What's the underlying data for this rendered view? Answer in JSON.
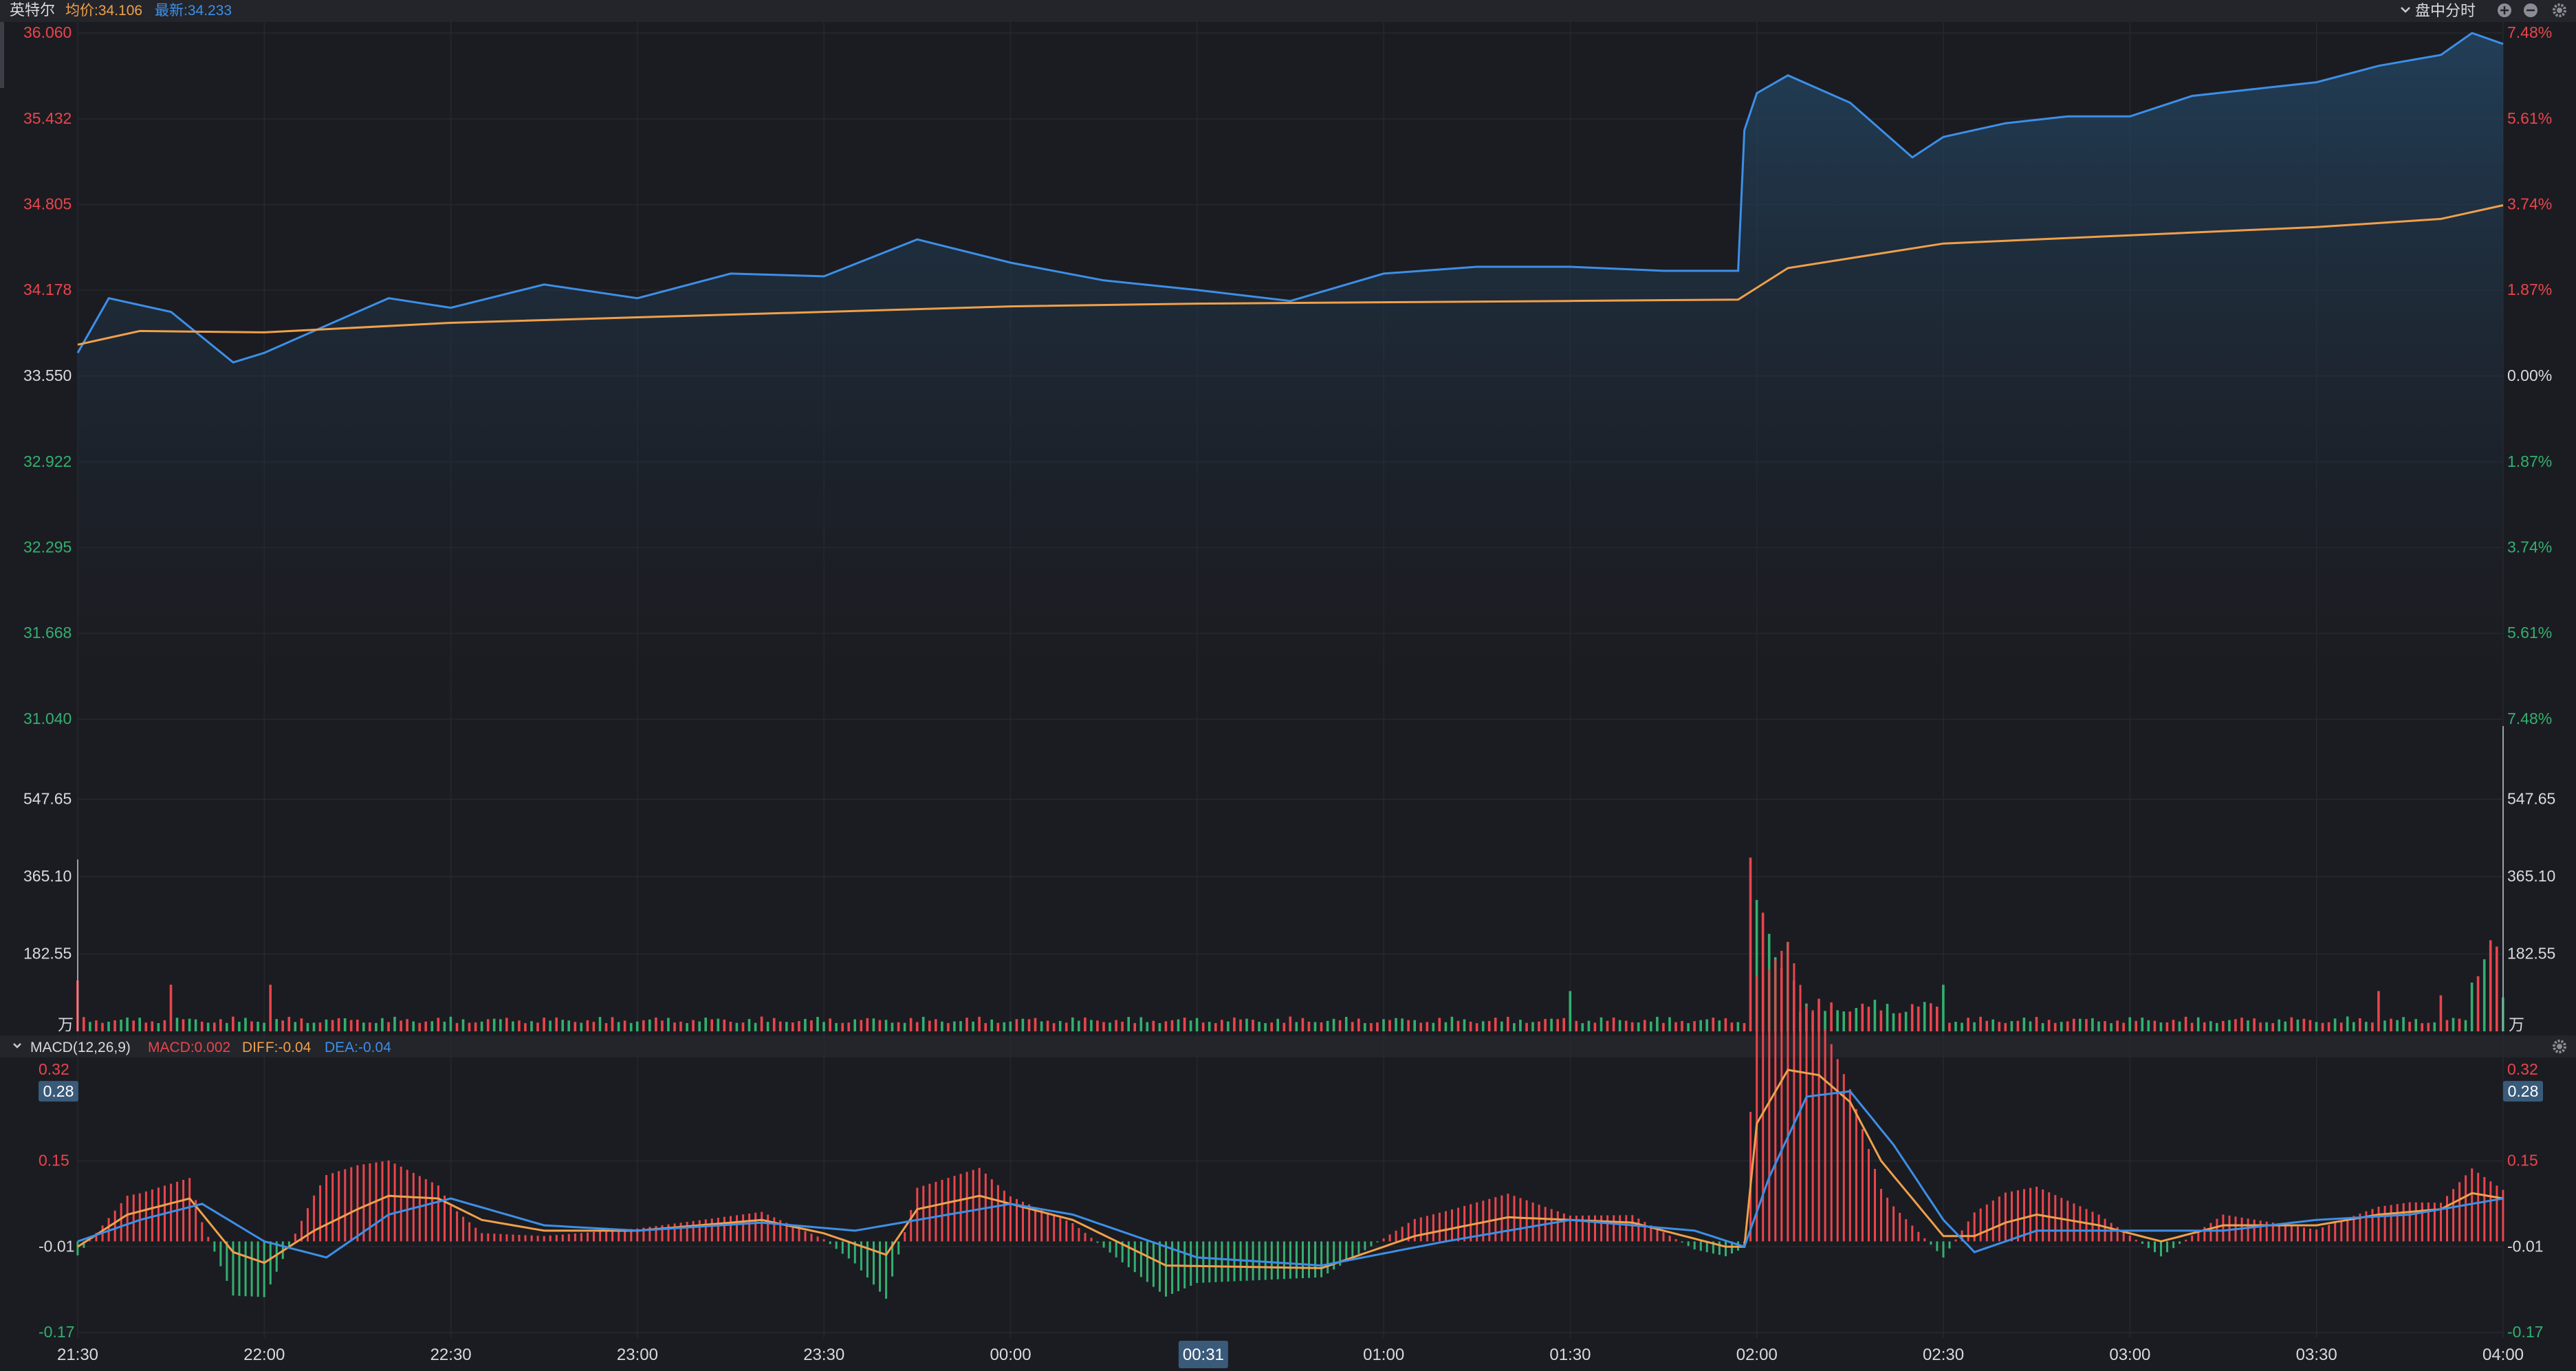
{
  "header": {
    "stock_name": "英特尔",
    "avg_label": "均价:34.106",
    "latest_label": "最新:34.233",
    "mode_label": "盘中分时",
    "icons": [
      "chevron-down-icon",
      "zoom-in-icon",
      "zoom-out-icon",
      "gear-icon"
    ]
  },
  "macd_header": {
    "title": "MACD(12,26,9)",
    "macd": "MACD:0.002",
    "diff": "DIFF:-0.04",
    "dea": "DEA:-0.04"
  },
  "colors": {
    "background": "#1b1c21",
    "up": "#e9454c",
    "down": "#32b070",
    "price_line": "#3d8fe8",
    "avg_line": "#f0a04b",
    "neutral_text": "#d8dae0",
    "grid": "#26282e"
  },
  "chart_data": [
    {
      "type": "line",
      "name": "price",
      "x_start": "21:30",
      "x_end": "04:00",
      "ylim": [
        31.04,
        36.06
      ],
      "y_tick_labels": [
        "36.060",
        "35.432",
        "34.805",
        "34.178",
        "33.550",
        "32.922",
        "32.295",
        "31.668",
        "31.040"
      ],
      "pct_tick_labels": [
        "7.48%",
        "5.61%",
        "3.74%",
        "1.87%",
        "0.00%",
        "1.87%",
        "3.74%",
        "5.61%",
        "7.48%"
      ],
      "series": [
        {
          "name": "最新",
          "x": [
            "21:30",
            "21:35",
            "21:45",
            "21:55",
            "22:00",
            "22:10",
            "22:20",
            "22:30",
            "22:45",
            "23:00",
            "23:15",
            "23:30",
            "23:45",
            "00:00",
            "00:15",
            "00:30",
            "00:45",
            "01:00",
            "01:15",
            "01:30",
            "01:45",
            "01:57",
            "01:58",
            "02:00",
            "02:05",
            "02:15",
            "02:25",
            "02:30",
            "02:40",
            "02:50",
            "03:00",
            "03:10",
            "03:20",
            "03:30",
            "03:40",
            "03:50",
            "03:55",
            "04:00"
          ],
          "values": [
            33.72,
            34.12,
            34.02,
            33.65,
            33.72,
            33.92,
            34.12,
            34.05,
            34.22,
            34.12,
            34.3,
            34.28,
            34.55,
            34.38,
            34.25,
            34.18,
            34.1,
            34.3,
            34.35,
            34.35,
            34.32,
            34.32,
            35.35,
            35.62,
            35.75,
            35.55,
            35.15,
            35.3,
            35.4,
            35.45,
            35.45,
            35.6,
            35.65,
            35.7,
            35.82,
            35.9,
            36.06,
            35.98
          ]
        },
        {
          "name": "均价",
          "x": [
            "21:30",
            "21:40",
            "22:00",
            "22:30",
            "23:00",
            "23:30",
            "00:00",
            "00:30",
            "01:00",
            "01:30",
            "01:57",
            "02:05",
            "02:30",
            "03:00",
            "03:30",
            "03:50",
            "04:00"
          ],
          "values": [
            33.78,
            33.88,
            33.87,
            33.94,
            33.98,
            34.02,
            34.06,
            34.08,
            34.09,
            34.1,
            34.11,
            34.34,
            34.52,
            34.58,
            34.64,
            34.7,
            34.8
          ]
        }
      ]
    },
    {
      "type": "bar",
      "name": "volume",
      "unit_label": "万",
      "ylim": [
        0,
        730
      ],
      "y_tick_labels": [
        "547.65",
        "365.10",
        "182.55"
      ],
      "x_start": "21:30",
      "x_end": "04:00",
      "interval_minutes": 1,
      "spike_minutes": [
        0,
        15,
        31,
        240,
        300,
        370,
        380,
        390
      ],
      "spike_values": [
        120,
        110,
        110,
        95,
        110,
        95,
        85,
        80
      ],
      "big_spikes": [
        {
          "minute": 269,
          "value": 410
        },
        {
          "minute": 270,
          "value": 310
        },
        {
          "minute": 271,
          "value": 280
        },
        {
          "minute": 272,
          "value": 230
        },
        {
          "minute": 273,
          "value": 175
        },
        {
          "minute": 274,
          "value": 150
        },
        {
          "minute": 275,
          "value": 210
        },
        {
          "minute": 276,
          "value": 120
        },
        {
          "minute": 385,
          "value": 115
        },
        {
          "minute": 386,
          "value": 130
        },
        {
          "minute": 387,
          "value": 170
        },
        {
          "minute": 388,
          "value": 215
        },
        {
          "minute": 389,
          "value": 200
        }
      ],
      "base_value": 35
    },
    {
      "type": "bar",
      "name": "macd",
      "ylim": [
        -0.17,
        0.32
      ],
      "y_tick_labels": [
        "0.32",
        "0.15",
        "-0.01",
        "-0.17"
      ],
      "highlight_value": "0.28",
      "x_tick_labels": [
        "21:30",
        "22:00",
        "22:30",
        "23:00",
        "23:30",
        "00:00",
        "00:31",
        "01:00",
        "01:30",
        "02:00",
        "02:30",
        "03:00",
        "03:30",
        "04:00"
      ],
      "highlight_time": "00:31",
      "series": [
        {
          "name": "DIFF",
          "x": [
            0,
            8,
            18,
            25,
            30,
            38,
            45,
            50,
            58,
            65,
            75,
            90,
            110,
            120,
            130,
            135,
            145,
            160,
            175,
            200,
            215,
            230,
            250,
            265,
            268,
            270,
            275,
            280,
            285,
            290,
            300,
            305,
            310,
            315,
            325,
            335,
            345,
            360,
            370,
            380,
            385,
            390
          ],
          "values": [
            -0.01,
            0.05,
            0.08,
            -0.02,
            -0.04,
            0.02,
            0.06,
            0.085,
            0.08,
            0.04,
            0.02,
            0.02,
            0.04,
            0.015,
            -0.025,
            0.06,
            0.085,
            0.04,
            -0.045,
            -0.05,
            0.01,
            0.045,
            0.035,
            -0.01,
            -0.01,
            0.22,
            0.32,
            0.31,
            0.26,
            0.15,
            0.01,
            0.01,
            0.035,
            0.05,
            0.03,
            0.0,
            0.03,
            0.03,
            0.05,
            0.06,
            0.09,
            0.08
          ]
        },
        {
          "name": "DEA",
          "x": [
            0,
            10,
            20,
            30,
            40,
            50,
            60,
            75,
            90,
            110,
            125,
            140,
            150,
            160,
            180,
            200,
            220,
            240,
            260,
            268,
            272,
            278,
            285,
            292,
            300,
            305,
            315,
            330,
            345,
            360,
            375,
            390
          ],
          "values": [
            0.0,
            0.04,
            0.07,
            0.0,
            -0.03,
            0.05,
            0.08,
            0.03,
            0.02,
            0.035,
            0.02,
            0.05,
            0.07,
            0.05,
            -0.03,
            -0.045,
            0.0,
            0.04,
            0.02,
            -0.01,
            0.12,
            0.27,
            0.28,
            0.18,
            0.04,
            -0.02,
            0.02,
            0.02,
            0.02,
            0.04,
            0.05,
            0.08
          ]
        }
      ]
    }
  ]
}
